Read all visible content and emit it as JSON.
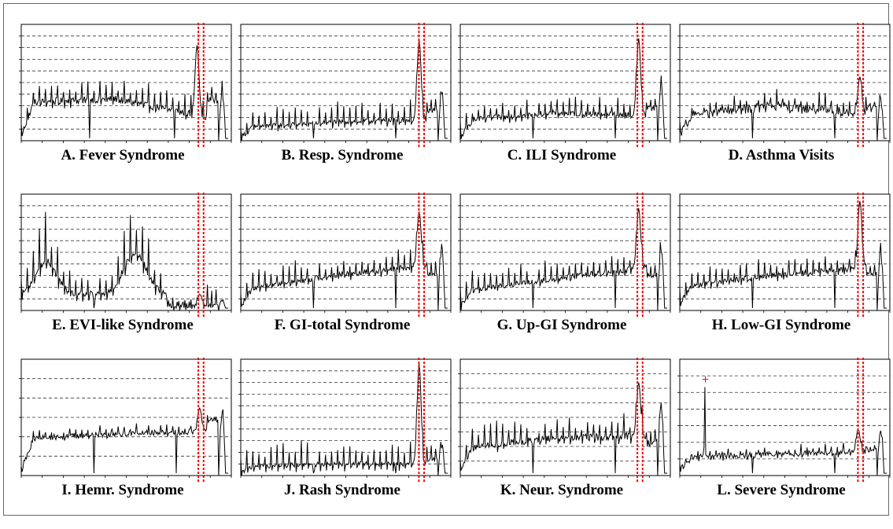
{
  "chart_data": [
    {
      "type": "line",
      "title": "A. Fever Syndrome",
      "line_color": "#000000",
      "highlight_color": "#ff0000",
      "grid": "dashed-horizontal",
      "y_max": 1.0,
      "y_gridlines": 9,
      "profile": {
        "base_start": 0.04,
        "base_level": 0.33,
        "mid_level": 0.36,
        "end_level": 0.22,
        "spike_amp": 0.14,
        "noise": 0.06,
        "drops": [
          0.33,
          0.74
        ],
        "peak_pos": 0.85,
        "peak_value": 0.82,
        "after_level": 0.35,
        "final_spike": 0.52
      },
      "highlight": [
        0.843,
        0.868
      ]
    },
    {
      "type": "line",
      "title": "B. Resp. Syndrome",
      "line_color": "#000000",
      "highlight_color": "#ff0000",
      "grid": "dashed-horizontal",
      "y_max": 1.0,
      "y_gridlines": 9,
      "profile": {
        "base_start": 0.03,
        "base_level": 0.12,
        "mid_level": 0.16,
        "end_level": 0.18,
        "spike_amp": 0.14,
        "noise": 0.04,
        "drops": [
          0.35,
          0.75
        ],
        "peak_pos": 0.86,
        "peak_value": 0.86,
        "after_level": 0.26,
        "final_spike": 0.47
      },
      "highlight": [
        0.848,
        0.873
      ]
    },
    {
      "type": "line",
      "title": "C. ILI Syndrome",
      "line_color": "#000000",
      "highlight_color": "#ff0000",
      "grid": "dashed-horizontal",
      "y_max": 1.0,
      "y_gridlines": 9,
      "profile": {
        "base_start": 0.03,
        "base_level": 0.18,
        "mid_level": 0.24,
        "end_level": 0.22,
        "spike_amp": 0.12,
        "noise": 0.05,
        "drops": [
          0.35,
          0.75
        ],
        "peak_pos": 0.86,
        "peak_value": 0.88,
        "after_level": 0.28,
        "final_spike": 0.54
      },
      "highlight": [
        0.843,
        0.868
      ]
    },
    {
      "type": "line",
      "title": "D. Asthma Visits",
      "line_color": "#000000",
      "highlight_color": "#ff0000",
      "grid": "dashed-horizontal",
      "y_max": 1.0,
      "y_gridlines": 9,
      "profile": {
        "base_start": 0.05,
        "base_level": 0.22,
        "mid_level": 0.3,
        "end_level": 0.24,
        "spike_amp": 0.1,
        "noise": 0.08,
        "drops": [
          0.35,
          0.75
        ],
        "peak_pos": 0.87,
        "peak_value": 0.55,
        "after_level": 0.28,
        "final_spike": 0.4
      },
      "highlight": [
        0.848,
        0.873
      ]
    },
    {
      "type": "line",
      "title": "E. EVI-like Syndrome",
      "line_color": "#000000",
      "highlight_color": "#ff0000",
      "grid": "dashed-horizontal",
      "y_max": 1.0,
      "y_gridlines": 9,
      "profile": {
        "base_start": 0.02,
        "base_level": 0.25,
        "mid_level": 0.3,
        "end_level": 0.05,
        "spike_amp": 0.25,
        "noise": 0.06,
        "drops": [
          0.35,
          0.75
        ],
        "peak_pos": 0.86,
        "peak_value": 0.14,
        "after_level": 0.05,
        "final_spike": 0.08,
        "seasonal": true
      },
      "highlight": [
        0.843,
        0.868
      ]
    },
    {
      "type": "line",
      "title": "F. GI-total Syndrome",
      "line_color": "#000000",
      "highlight_color": "#ff0000",
      "grid": "dashed-horizontal",
      "y_max": 1.0,
      "y_gridlines": 9,
      "profile": {
        "base_start": 0.04,
        "base_level": 0.2,
        "mid_level": 0.3,
        "end_level": 0.38,
        "spike_amp": 0.13,
        "noise": 0.05,
        "drops": [
          0.35,
          0.75
        ],
        "peak_pos": 0.86,
        "peak_value": 0.85,
        "after_level": 0.32,
        "final_spike": 0.6
      },
      "highlight": [
        0.848,
        0.873
      ]
    },
    {
      "type": "line",
      "title": "G. Up-GI Syndrome",
      "line_color": "#000000",
      "highlight_color": "#ff0000",
      "grid": "dashed-horizontal",
      "y_max": 1.0,
      "y_gridlines": 9,
      "profile": {
        "base_start": 0.04,
        "base_level": 0.18,
        "mid_level": 0.27,
        "end_level": 0.36,
        "spike_amp": 0.13,
        "noise": 0.05,
        "drops": [
          0.35,
          0.75
        ],
        "peak_pos": 0.86,
        "peak_value": 0.88,
        "after_level": 0.3,
        "final_spike": 0.62
      },
      "highlight": [
        0.843,
        0.868
      ]
    },
    {
      "type": "line",
      "title": "H. Low-GI Syndrome",
      "line_color": "#000000",
      "highlight_color": "#ff0000",
      "grid": "dashed-horizontal",
      "y_max": 1.0,
      "y_gridlines": 9,
      "profile": {
        "base_start": 0.05,
        "base_level": 0.22,
        "mid_level": 0.3,
        "end_level": 0.36,
        "spike_amp": 0.12,
        "noise": 0.05,
        "drops": [
          0.35,
          0.75
        ],
        "peak_pos": 0.87,
        "peak_value": 0.94,
        "after_level": 0.32,
        "final_spike": 0.58
      },
      "highlight": [
        0.848,
        0.873
      ]
    },
    {
      "type": "line",
      "title": "I. Hemr. Syndrome",
      "line_color": "#000000",
      "highlight_color": "#ff0000",
      "grid": "dashed-horizontal",
      "y_max": 1.0,
      "y_gridlines": 5,
      "profile": {
        "base_start": 0.05,
        "base_level": 0.32,
        "mid_level": 0.36,
        "end_level": 0.38,
        "spike_amp": 0.06,
        "noise": 0.05,
        "drops": [
          0.35,
          0.75
        ],
        "peak_pos": 0.86,
        "peak_value": 0.58,
        "after_level": 0.48,
        "final_spike": 0.62
      },
      "highlight": [
        0.843,
        0.868
      ]
    },
    {
      "type": "line",
      "title": "J. Rash Syndrome",
      "line_color": "#000000",
      "highlight_color": "#ff0000",
      "grid": "dashed-horizontal",
      "y_max": 1.0,
      "y_gridlines": 9,
      "profile": {
        "base_start": 0.03,
        "base_level": 0.08,
        "mid_level": 0.1,
        "end_level": 0.1,
        "spike_amp": 0.18,
        "noise": 0.04,
        "drops": [
          0.35,
          0.75
        ],
        "peak_pos": 0.86,
        "peak_value": 0.96,
        "after_level": 0.14,
        "final_spike": 0.3
      },
      "highlight": [
        0.848,
        0.873
      ]
    },
    {
      "type": "line",
      "title": "K. Neur. Syndrome",
      "line_color": "#000000",
      "highlight_color": "#ff0000",
      "grid": "dashed-horizontal",
      "y_max": 1.0,
      "y_gridlines": 7,
      "profile": {
        "base_start": 0.05,
        "base_level": 0.25,
        "mid_level": 0.32,
        "end_level": 0.34,
        "spike_amp": 0.16,
        "noise": 0.06,
        "drops": [
          0.35,
          0.75
        ],
        "peak_pos": 0.86,
        "peak_value": 0.8,
        "after_level": 0.28,
        "final_spike": 0.68
      },
      "highlight": [
        0.843,
        0.868
      ]
    },
    {
      "type": "line",
      "title": "L. Severe Syndrome",
      "line_color": "#000000",
      "highlight_color": "#ff0000",
      "grid": "dashed-horizontal",
      "y_max": 1.0,
      "y_gridlines": 6,
      "profile": {
        "base_start": 0.05,
        "base_level": 0.16,
        "mid_level": 0.18,
        "end_level": 0.2,
        "spike_amp": 0.06,
        "noise": 0.05,
        "drops": [
          0.35,
          0.75
        ],
        "peak_pos": 0.86,
        "peak_value": 0.4,
        "after_level": 0.22,
        "final_spike": 0.48,
        "outlier_pos": 0.12,
        "outlier_value": 0.76
      },
      "highlight": [
        0.848,
        0.873
      ]
    }
  ]
}
